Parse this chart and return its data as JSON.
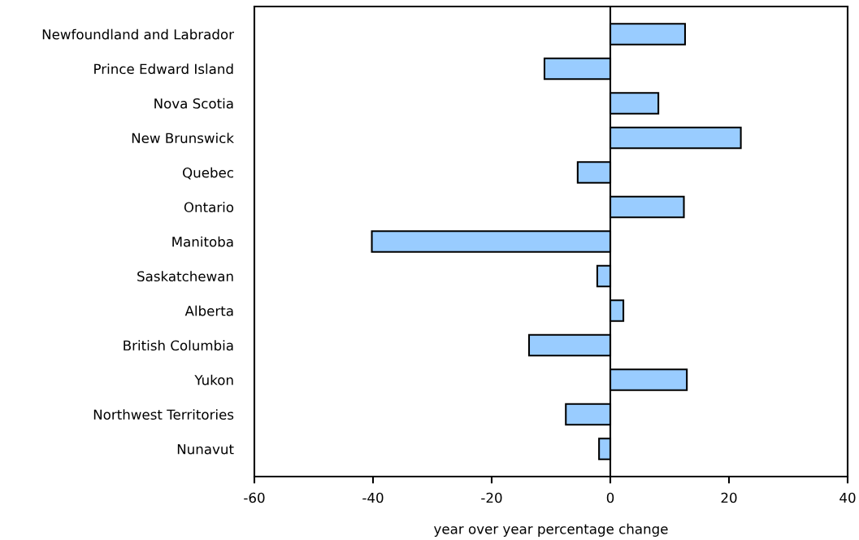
{
  "chart_data": {
    "type": "bar",
    "orientation": "horizontal",
    "xlabel": "year over year percentage change",
    "categories": [
      "Newfoundland and Labrador",
      "Prince Edward Island",
      "Nova Scotia",
      "New Brunswick",
      "Quebec",
      "Ontario",
      "Manitoba",
      "Saskatchewan",
      "Alberta",
      "British Columbia",
      "Yukon",
      "Northwest Territories",
      "Nunavut"
    ],
    "values": [
      12.6,
      -11.1,
      8.1,
      22.0,
      -5.5,
      12.4,
      -40.2,
      -2.2,
      2.2,
      -13.7,
      12.9,
      -7.5,
      -1.9
    ],
    "color": "#99ccff",
    "xlim": [
      -60,
      40
    ],
    "xticks": [
      -60,
      -40,
      -20,
      0,
      20,
      40
    ],
    "ref_lines": [
      {
        "axis": "x",
        "value": 0,
        "color": "#000000"
      }
    ],
    "grid": false,
    "legend": false
  }
}
